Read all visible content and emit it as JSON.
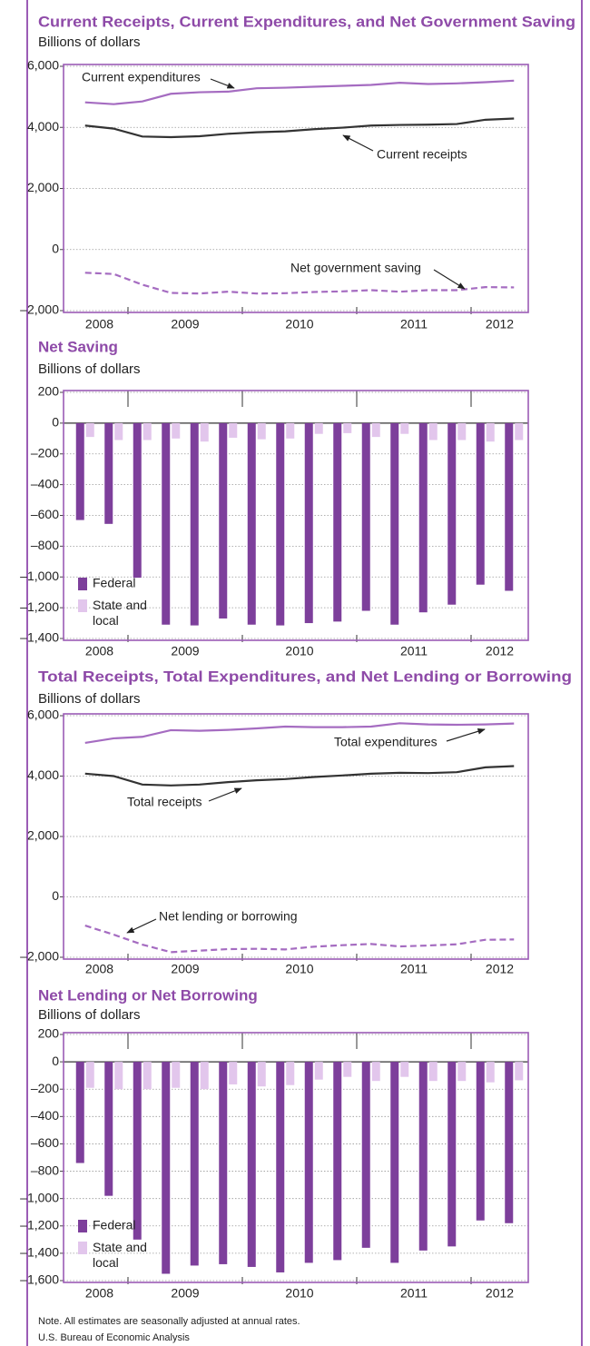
{
  "chart_data": [
    {
      "type": "line",
      "title": "Current Receipts, Current Expenditures, and Net Government Saving",
      "subtitle": "Billions of dollars",
      "categories": [
        "2008",
        null,
        "2009",
        null,
        null,
        null,
        "2010",
        null,
        null,
        null,
        "2011",
        null,
        null,
        null,
        "2012",
        null
      ],
      "series": [
        {
          "name": "Current expenditures",
          "color": "#a56cc1",
          "dash": false,
          "values": [
            4820,
            4760,
            4850,
            5100,
            5150,
            5170,
            5280,
            5300,
            5330,
            5360,
            5390,
            5460,
            5420,
            5440,
            5480,
            5530
          ]
        },
        {
          "name": "Current receipts",
          "color": "#333333",
          "dash": false,
          "values": [
            4060,
            3960,
            3700,
            3680,
            3710,
            3790,
            3840,
            3870,
            3940,
            3990,
            4060,
            4080,
            4090,
            4110,
            4250,
            4290
          ]
        },
        {
          "name": "Net government saving",
          "color": "#a56cc1",
          "dash": true,
          "values": [
            -760,
            -800,
            -1150,
            -1420,
            -1440,
            -1380,
            -1440,
            -1430,
            -1390,
            -1370,
            -1330,
            -1380,
            -1330,
            -1330,
            -1230,
            -1240
          ]
        }
      ],
      "ylim": [
        -2000,
        6000
      ],
      "yticks": [
        {
          "value": -2000,
          "label": "–2,000"
        },
        0,
        {
          "value": 2000,
          "label": "2,000"
        },
        {
          "value": 4000,
          "label": "4,000"
        },
        {
          "value": 6000,
          "label": "6,000"
        }
      ],
      "grid": true
    },
    {
      "type": "bar",
      "title": "Net Saving",
      "subtitle": "Billions of dollars",
      "categories": [
        "2008",
        null,
        "2009",
        null,
        null,
        null,
        "2010",
        null,
        null,
        null,
        "2011",
        null,
        null,
        null,
        "2012",
        null
      ],
      "series": [
        {
          "name": "Federal",
          "color": "#7d3f9b",
          "values": [
            -630,
            -655,
            -1005,
            -1310,
            -1315,
            -1270,
            -1310,
            -1315,
            -1300,
            -1290,
            -1220,
            -1310,
            -1230,
            -1180,
            -1050,
            -1090
          ]
        },
        {
          "name": "State and local",
          "color": "#e2c6ec",
          "values": [
            -90,
            -110,
            -110,
            -100,
            -120,
            -95,
            -105,
            -100,
            -70,
            -65,
            -90,
            -70,
            -110,
            -110,
            -120,
            -110
          ]
        }
      ],
      "ylim": [
        -1400,
        200
      ],
      "yticks": [
        {
          "value": -1400,
          "label": "–1,400"
        },
        {
          "value": -1200,
          "label": "–1,200"
        },
        {
          "value": -1000,
          "label": "–1,000"
        },
        {
          "value": -800,
          "label": "–800"
        },
        {
          "value": -600,
          "label": "–600"
        },
        {
          "value": -400,
          "label": "–400"
        },
        {
          "value": -200,
          "label": "–200"
        },
        0,
        200
      ],
      "grid": true,
      "legend": "lower left"
    },
    {
      "type": "line",
      "title": "Total Receipts, Total Expenditures, and Net Lending or Borrowing",
      "subtitle": "Billions of dollars",
      "categories": [
        "2008",
        null,
        "2009",
        null,
        null,
        null,
        "2010",
        null,
        null,
        null,
        "2011",
        null,
        null,
        null,
        "2012",
        null
      ],
      "series": [
        {
          "name": "Total expenditures",
          "color": "#a56cc1",
          "dash": false,
          "values": [
            5100,
            5250,
            5300,
            5520,
            5500,
            5530,
            5580,
            5640,
            5620,
            5620,
            5640,
            5750,
            5710,
            5700,
            5710,
            5740
          ]
        },
        {
          "name": "Total receipts",
          "color": "#333333",
          "dash": false,
          "values": [
            4080,
            4000,
            3720,
            3690,
            3720,
            3800,
            3860,
            3900,
            3970,
            4020,
            4080,
            4110,
            4100,
            4130,
            4290,
            4330
          ]
        },
        {
          "name": "Net lending or borrowing",
          "color": "#a56cc1",
          "dash": true,
          "values": [
            -950,
            -1250,
            -1580,
            -1830,
            -1780,
            -1730,
            -1720,
            -1740,
            -1650,
            -1600,
            -1560,
            -1640,
            -1610,
            -1570,
            -1420,
            -1410
          ]
        }
      ],
      "ylim": [
        -2000,
        6000
      ],
      "yticks": [
        {
          "value": -2000,
          "label": "–2,000"
        },
        0,
        {
          "value": 2000,
          "label": "2,000"
        },
        {
          "value": 4000,
          "label": "4,000"
        },
        {
          "value": 6000,
          "label": "6,000"
        }
      ],
      "grid": true
    },
    {
      "type": "bar",
      "title": "Net Lending or Net Borrowing",
      "subtitle": "Billions of dollars",
      "categories": [
        "2008",
        null,
        "2009",
        null,
        null,
        null,
        "2010",
        null,
        null,
        null,
        "2011",
        null,
        null,
        null,
        "2012",
        null
      ],
      "series": [
        {
          "name": "Federal",
          "color": "#7d3f9b",
          "values": [
            -740,
            -980,
            -1300,
            -1550,
            -1490,
            -1480,
            -1500,
            -1540,
            -1470,
            -1450,
            -1360,
            -1470,
            -1380,
            -1350,
            -1160,
            -1180
          ]
        },
        {
          "name": "State and local",
          "color": "#e2c6ec",
          "values": [
            -190,
            -200,
            -200,
            -190,
            -200,
            -165,
            -180,
            -170,
            -130,
            -110,
            -140,
            -110,
            -140,
            -140,
            -150,
            -135
          ]
        }
      ],
      "ylim": [
        -1600,
        200
      ],
      "yticks": [
        {
          "value": -1600,
          "label": "–1,600"
        },
        {
          "value": -1400,
          "label": "–1,400"
        },
        {
          "value": -1200,
          "label": "–1,200"
        },
        {
          "value": -1000,
          "label": "–1,000"
        },
        {
          "value": -800,
          "label": "–800"
        },
        {
          "value": -600,
          "label": "–600"
        },
        {
          "value": -400,
          "label": "–400"
        },
        {
          "value": -200,
          "label": "–200"
        },
        0,
        200
      ],
      "grid": true,
      "legend": "lower left"
    }
  ],
  "note": "Note. All estimates are seasonally adjusted at annual rates.",
  "source": "U.S. Bureau of Economic Analysis"
}
